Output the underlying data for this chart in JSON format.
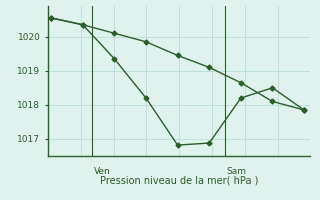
{
  "line1_x": [
    0,
    1,
    2,
    3,
    4,
    5,
    6,
    7,
    8
  ],
  "line1_y": [
    1020.55,
    1020.35,
    1020.1,
    1019.85,
    1019.45,
    1019.1,
    1018.65,
    1018.1,
    1017.85
  ],
  "line2_x": [
    0,
    1,
    2,
    3,
    4,
    5,
    6,
    7,
    8
  ],
  "line2_y": [
    1020.55,
    1020.35,
    1019.35,
    1018.2,
    1016.82,
    1016.88,
    1018.2,
    1018.5,
    1017.85
  ],
  "line_color": "#2a5e2a",
  "bg_color": "#dff2ee",
  "grid_color": "#b8ddd6",
  "axis_color": "#2a5e2a",
  "tick_label_color": "#2a5e2a",
  "xlabel": "Pression niveau de la mer( hPa )",
  "ylim": [
    1016.5,
    1020.9
  ],
  "yticks": [
    1017,
    1018,
    1019,
    1020
  ],
  "ven_x": 1.3,
  "sam_x": 5.5,
  "marker": "D",
  "markersize": 2.5,
  "linewidth": 1.0,
  "xlim": [
    -0.1,
    8.2
  ],
  "xlabel_fontsize": 7.0,
  "tick_fontsize": 6.5
}
